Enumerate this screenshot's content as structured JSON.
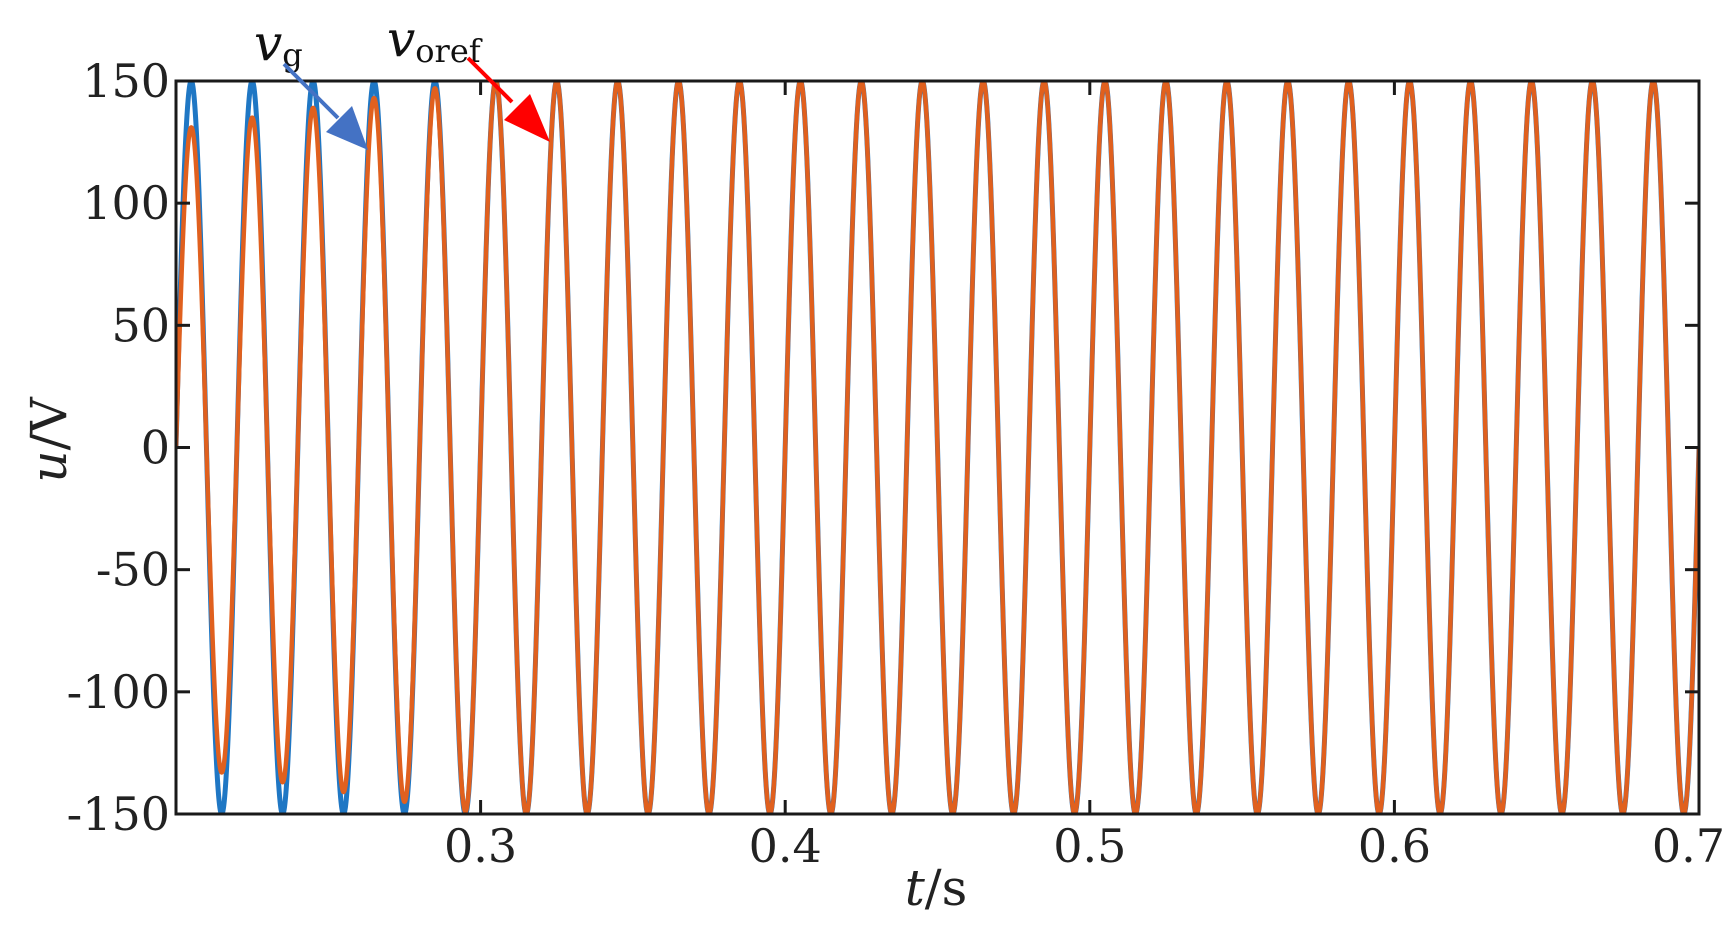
{
  "chart_data": {
    "type": "line",
    "xlabel_italic": "t",
    "xlabel_unit": "/s",
    "ylabel_italic": "u",
    "ylabel_unit": "/V",
    "xlim": [
      0.2,
      0.7
    ],
    "ylim": [
      -150,
      150
    ],
    "x_ticks": [
      0.3,
      0.4,
      0.5,
      0.6,
      0.7
    ],
    "x_tick_labels": [
      "0.3",
      "0.4",
      "0.5",
      "0.6",
      "0.7"
    ],
    "y_ticks": [
      150,
      100,
      50,
      0,
      -50,
      -100,
      -150
    ],
    "y_tick_labels": [
      "150",
      "100",
      "50",
      "0",
      "-50",
      "-100",
      "-150"
    ],
    "grid": false,
    "series": [
      {
        "name": "v_g",
        "color": "#1f77c4",
        "frequency_hz": 50,
        "amplitude_v": 150,
        "phase_deg": 0
      },
      {
        "name": "v_oref",
        "color": "#e0601e",
        "frequency_hz": 50,
        "amplitude_start_v": 130,
        "amplitude_settled_v": 150,
        "settled_time_s": 0.3,
        "phase_deg": 0
      }
    ],
    "annotations": [
      {
        "symbol": "v",
        "subscript": "g",
        "arrow_color": "#4472c4"
      },
      {
        "symbol": "v",
        "subscript": "oref",
        "arrow_color": "#ff0000"
      }
    ]
  }
}
